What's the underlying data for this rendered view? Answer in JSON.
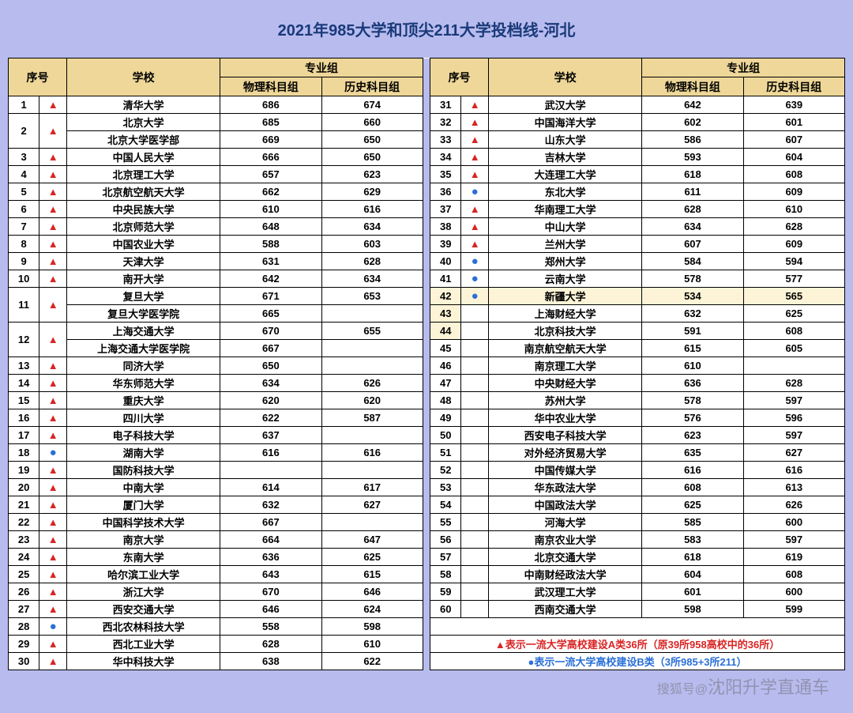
{
  "title": "2021年985大学和顶尖211大学投档线-河北",
  "headers": {
    "num": "序号",
    "school": "学校",
    "group": "专业组",
    "physics": "物理科目组",
    "history": "历史科目组"
  },
  "colors": {
    "page_bg": "#b8bbee",
    "header_bg": "#eed798",
    "title_color": "#1a3a7a",
    "border": "#000000",
    "red": "#d92424",
    "blue": "#2a6fd6",
    "yellow_row": "#fdf3d6"
  },
  "legend": {
    "red": "▲表示一流大学高校建设A类36所（原39所958高校中的36所）",
    "blue": "●表示一流大学高校建设B类（3所985+3所211）"
  },
  "watermark_small": "搜狐号@",
  "watermark": "沈阳升学直通车",
  "left": [
    {
      "num": "1",
      "mark": "red",
      "rows": [
        {
          "school": "清华大学",
          "p": "686",
          "h": "674"
        }
      ]
    },
    {
      "num": "2",
      "mark": "red",
      "rows": [
        {
          "school": "北京大学",
          "p": "685",
          "h": "660"
        },
        {
          "school": "北京大学医学部",
          "p": "669",
          "h": "650"
        }
      ]
    },
    {
      "num": "3",
      "mark": "red",
      "rows": [
        {
          "school": "中国人民大学",
          "p": "666",
          "h": "650"
        }
      ]
    },
    {
      "num": "4",
      "mark": "red",
      "rows": [
        {
          "school": "北京理工大学",
          "p": "657",
          "h": "623"
        }
      ]
    },
    {
      "num": "5",
      "mark": "red",
      "rows": [
        {
          "school": "北京航空航天大学",
          "p": "662",
          "h": "629"
        }
      ]
    },
    {
      "num": "6",
      "mark": "red",
      "rows": [
        {
          "school": "中央民族大学",
          "p": "610",
          "h": "616"
        }
      ]
    },
    {
      "num": "7",
      "mark": "red",
      "rows": [
        {
          "school": "北京师范大学",
          "p": "648",
          "h": "634"
        }
      ]
    },
    {
      "num": "8",
      "mark": "red",
      "rows": [
        {
          "school": "中国农业大学",
          "p": "588",
          "h": "603"
        }
      ]
    },
    {
      "num": "9",
      "mark": "red",
      "rows": [
        {
          "school": "天津大学",
          "p": "631",
          "h": "628"
        }
      ]
    },
    {
      "num": "10",
      "mark": "red",
      "rows": [
        {
          "school": "南开大学",
          "p": "642",
          "h": "634"
        }
      ]
    },
    {
      "num": "11",
      "mark": "red",
      "rows": [
        {
          "school": "复旦大学",
          "p": "671",
          "h": "653"
        },
        {
          "school": "复旦大学医学院",
          "p": "665",
          "h": ""
        }
      ]
    },
    {
      "num": "12",
      "mark": "red",
      "rows": [
        {
          "school": "上海交通大学",
          "p": "670",
          "h": "655"
        },
        {
          "school": "上海交通大学医学院",
          "p": "667",
          "h": ""
        }
      ]
    },
    {
      "num": "13",
      "mark": "red",
      "rows": [
        {
          "school": "同济大学",
          "p": "650",
          "h": ""
        }
      ]
    },
    {
      "num": "14",
      "mark": "red",
      "rows": [
        {
          "school": "华东师范大学",
          "p": "634",
          "h": "626"
        }
      ]
    },
    {
      "num": "15",
      "mark": "red",
      "rows": [
        {
          "school": "重庆大学",
          "p": "620",
          "h": "620"
        }
      ]
    },
    {
      "num": "16",
      "mark": "red",
      "rows": [
        {
          "school": "四川大学",
          "p": "622",
          "h": "587"
        }
      ]
    },
    {
      "num": "17",
      "mark": "red",
      "rows": [
        {
          "school": "电子科技大学",
          "p": "637",
          "h": ""
        }
      ]
    },
    {
      "num": "18",
      "mark": "blue",
      "rows": [
        {
          "school": "湖南大学",
          "p": "616",
          "h": "616"
        }
      ]
    },
    {
      "num": "19",
      "mark": "red",
      "rows": [
        {
          "school": "国防科技大学",
          "p": "",
          "h": ""
        }
      ]
    },
    {
      "num": "20",
      "mark": "red",
      "rows": [
        {
          "school": "中南大学",
          "p": "614",
          "h": "617"
        }
      ]
    },
    {
      "num": "21",
      "mark": "red",
      "rows": [
        {
          "school": "厦门大学",
          "p": "632",
          "h": "627"
        }
      ]
    },
    {
      "num": "22",
      "mark": "red",
      "rows": [
        {
          "school": "中国科学技术大学",
          "p": "667",
          "h": ""
        }
      ]
    },
    {
      "num": "23",
      "mark": "red",
      "rows": [
        {
          "school": "南京大学",
          "p": "664",
          "h": "647"
        }
      ]
    },
    {
      "num": "24",
      "mark": "red",
      "rows": [
        {
          "school": "东南大学",
          "p": "636",
          "h": "625"
        }
      ]
    },
    {
      "num": "25",
      "mark": "red",
      "rows": [
        {
          "school": "哈尔滨工业大学",
          "p": "643",
          "h": "615"
        }
      ]
    },
    {
      "num": "26",
      "mark": "red",
      "rows": [
        {
          "school": "浙江大学",
          "p": "670",
          "h": "646"
        }
      ]
    },
    {
      "num": "27",
      "mark": "red",
      "rows": [
        {
          "school": "西安交通大学",
          "p": "646",
          "h": "624"
        }
      ]
    },
    {
      "num": "28",
      "mark": "blue",
      "rows": [
        {
          "school": "西北农林科技大学",
          "p": "558",
          "h": "598"
        }
      ]
    },
    {
      "num": "29",
      "mark": "red",
      "rows": [
        {
          "school": "西北工业大学",
          "p": "628",
          "h": "610"
        }
      ]
    },
    {
      "num": "30",
      "mark": "red",
      "rows": [
        {
          "school": "华中科技大学",
          "p": "638",
          "h": "622"
        }
      ]
    }
  ],
  "right": [
    {
      "num": "31",
      "mark": "red",
      "rows": [
        {
          "school": "武汉大学",
          "p": "642",
          "h": "639"
        }
      ]
    },
    {
      "num": "32",
      "mark": "red",
      "rows": [
        {
          "school": "中国海洋大学",
          "p": "602",
          "h": "601"
        }
      ]
    },
    {
      "num": "33",
      "mark": "red",
      "rows": [
        {
          "school": "山东大学",
          "p": "586",
          "h": "607"
        }
      ]
    },
    {
      "num": "34",
      "mark": "red",
      "rows": [
        {
          "school": "吉林大学",
          "p": "593",
          "h": "604"
        }
      ]
    },
    {
      "num": "35",
      "mark": "red",
      "rows": [
        {
          "school": "大连理工大学",
          "p": "618",
          "h": "608"
        }
      ]
    },
    {
      "num": "36",
      "mark": "blue",
      "rows": [
        {
          "school": "东北大学",
          "p": "611",
          "h": "609"
        }
      ]
    },
    {
      "num": "37",
      "mark": "red",
      "rows": [
        {
          "school": "华南理工大学",
          "p": "628",
          "h": "610"
        }
      ]
    },
    {
      "num": "38",
      "mark": "red",
      "rows": [
        {
          "school": "中山大学",
          "p": "634",
          "h": "628"
        }
      ]
    },
    {
      "num": "39",
      "mark": "red",
      "rows": [
        {
          "school": "兰州大学",
          "p": "607",
          "h": "609"
        }
      ]
    },
    {
      "num": "40",
      "mark": "blue",
      "rows": [
        {
          "school": "郑州大学",
          "p": "584",
          "h": "594"
        }
      ]
    },
    {
      "num": "41",
      "mark": "blue",
      "rows": [
        {
          "school": "云南大学",
          "p": "578",
          "h": "577"
        }
      ]
    },
    {
      "num": "42",
      "mark": "blue",
      "yellow": true,
      "rows": [
        {
          "school": "新疆大学",
          "p": "534",
          "h": "565"
        }
      ]
    },
    {
      "num": "43",
      "mark": "",
      "yellow_num": true,
      "rows": [
        {
          "school": "上海财经大学",
          "p": "632",
          "h": "625"
        }
      ]
    },
    {
      "num": "44",
      "mark": "",
      "yellow_num": true,
      "rows": [
        {
          "school": "北京科技大学",
          "p": "591",
          "h": "608"
        }
      ]
    },
    {
      "num": "45",
      "mark": "",
      "rows": [
        {
          "school": "南京航空航天大学",
          "p": "615",
          "h": "605"
        }
      ]
    },
    {
      "num": "46",
      "mark": "",
      "rows": [
        {
          "school": "南京理工大学",
          "p": "610",
          "h": ""
        }
      ]
    },
    {
      "num": "47",
      "mark": "",
      "rows": [
        {
          "school": "中央财经大学",
          "p": "636",
          "h": "628"
        }
      ]
    },
    {
      "num": "48",
      "mark": "",
      "rows": [
        {
          "school": "苏州大学",
          "p": "578",
          "h": "597"
        }
      ]
    },
    {
      "num": "49",
      "mark": "",
      "rows": [
        {
          "school": "华中农业大学",
          "p": "576",
          "h": "596"
        }
      ]
    },
    {
      "num": "50",
      "mark": "",
      "rows": [
        {
          "school": "西安电子科技大学",
          "p": "623",
          "h": "597"
        }
      ]
    },
    {
      "num": "51",
      "mark": "",
      "rows": [
        {
          "school": "对外经济贸易大学",
          "p": "635",
          "h": "627"
        }
      ]
    },
    {
      "num": "52",
      "mark": "",
      "rows": [
        {
          "school": "中国传媒大学",
          "p": "616",
          "h": "616"
        }
      ]
    },
    {
      "num": "53",
      "mark": "",
      "rows": [
        {
          "school": "华东政法大学",
          "p": "608",
          "h": "613"
        }
      ]
    },
    {
      "num": "54",
      "mark": "",
      "rows": [
        {
          "school": "中国政法大学",
          "p": "625",
          "h": "626"
        }
      ]
    },
    {
      "num": "55",
      "mark": "",
      "rows": [
        {
          "school": "河海大学",
          "p": "585",
          "h": "600"
        }
      ]
    },
    {
      "num": "56",
      "mark": "",
      "rows": [
        {
          "school": "南京农业大学",
          "p": "583",
          "h": "597"
        }
      ]
    },
    {
      "num": "57",
      "mark": "",
      "rows": [
        {
          "school": "北京交通大学",
          "p": "618",
          "h": "619"
        }
      ]
    },
    {
      "num": "58",
      "mark": "",
      "rows": [
        {
          "school": "中南财经政法大学",
          "p": "604",
          "h": "608"
        }
      ]
    },
    {
      "num": "59",
      "mark": "",
      "rows": [
        {
          "school": "武汉理工大学",
          "p": "601",
          "h": "600"
        }
      ]
    },
    {
      "num": "60",
      "mark": "",
      "rows": [
        {
          "school": "西南交通大学",
          "p": "598",
          "h": "599"
        }
      ]
    }
  ]
}
